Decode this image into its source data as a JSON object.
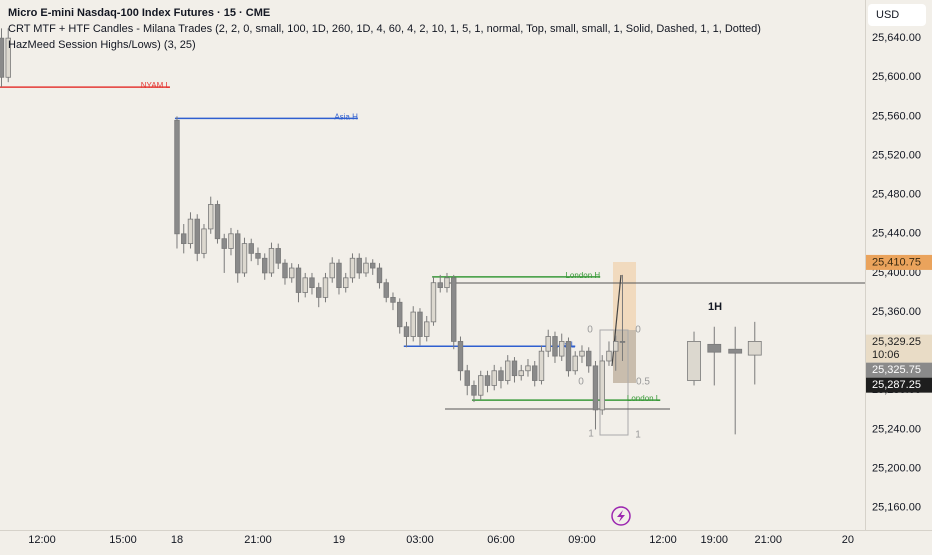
{
  "chart_data": {
    "type": "candlestick",
    "title": "Micro E-mini Nasdaq-100 Index Futures · 15 · CME",
    "indicators": [
      "CRT MTF + HTF Candles - Milana Trades (2, 2, 0, small, 100, 1D, 260, 1D, 4, 60, 4, 2, 10, 1, 5, 1, normal, Top, small, small, 1, Solid, Dashed, 1, 1, Dotted)",
      "HazMeed Session Highs/Lows) (3, 25)"
    ],
    "currency": "USD",
    "up_color": "#dcd8cf",
    "down_color": "#8a8a8a",
    "wick_color": "#7a7a7a",
    "xlim": [
      -6.22,
      121.93
    ],
    "ylim": [
      25127,
      25679
    ],
    "xticks": [
      {
        "value": 0,
        "label": "12:00"
      },
      {
        "value": 12,
        "label": "15:00"
      },
      {
        "value": 20,
        "label": "18"
      },
      {
        "value": 32,
        "label": "21:00"
      },
      {
        "value": 44,
        "label": "19"
      },
      {
        "value": 56,
        "label": "03:00"
      },
      {
        "value": 68,
        "label": "06:00"
      },
      {
        "value": 80,
        "label": "09:00"
      },
      {
        "value": 92,
        "label": "12:00"
      },
      {
        "value": 99.6,
        "label": "19:00"
      },
      {
        "value": 107.6,
        "label": "21:00"
      },
      {
        "value": 119.4,
        "label": "20"
      }
    ],
    "yticks": [
      {
        "value": 25160,
        "label": "25,160.00"
      },
      {
        "value": 25200,
        "label": "25,200.00"
      },
      {
        "value": 25240,
        "label": "25,240.00"
      },
      {
        "value": 25280,
        "label": "25,280.00"
      },
      {
        "value": 25320,
        "label": "25,320.00"
      },
      {
        "value": 25360,
        "label": "25,360.00"
      },
      {
        "value": 25400,
        "label": "25,400.00"
      },
      {
        "value": 25440,
        "label": "25,440.00"
      },
      {
        "value": 25480,
        "label": "25,480.00"
      },
      {
        "value": 25520,
        "label": "25,520.00"
      },
      {
        "value": 25560,
        "label": "25,560.00"
      },
      {
        "value": 25600,
        "label": "25,600.00"
      },
      {
        "value": 25640,
        "label": "25,640.00"
      }
    ],
    "candles": {
      "x": [
        -6,
        -5,
        20,
        21,
        22,
        23,
        24,
        25,
        26,
        27,
        28,
        29,
        30,
        31,
        32,
        33,
        34,
        35,
        36,
        37,
        38,
        39,
        40,
        41,
        42,
        43,
        44,
        45,
        46,
        47,
        48,
        49,
        50,
        51,
        52,
        53,
        54,
        55,
        56,
        57,
        58,
        59,
        60,
        61,
        62,
        63,
        64,
        65,
        66,
        67,
        68,
        69,
        70,
        71,
        72,
        73,
        74,
        75,
        76,
        77,
        78,
        79,
        80,
        81,
        82,
        83,
        84,
        85,
        86
      ],
      "open": [
        25640,
        25600,
        25556,
        25440,
        25430,
        25455,
        25420,
        25445,
        25470,
        25435,
        25425,
        25440,
        25400,
        25430,
        25420,
        25415,
        25400,
        25425,
        25410,
        25395,
        25405,
        25380,
        25395,
        25385,
        25375,
        25395,
        25410,
        25385,
        25395,
        25415,
        25400,
        25410,
        25405,
        25390,
        25375,
        25370,
        25345,
        25335,
        25360,
        25335,
        25350,
        25390,
        25385,
        25395,
        25330,
        25300,
        25285,
        25275,
        25295,
        25285,
        25300,
        25290,
        25310,
        25295,
        25300,
        25305,
        25290,
        25320,
        25335,
        25315,
        25330,
        25300,
        25315,
        25320,
        25305,
        25260,
        25310,
        25320,
        25330
      ],
      "high": [
        25650,
        25650,
        25560,
        25450,
        25462,
        25460,
        25450,
        25478,
        25474,
        25440,
        25446,
        25444,
        25436,
        25435,
        25426,
        25420,
        25431,
        25430,
        25414,
        25410,
        25409,
        25400,
        25400,
        25390,
        25400,
        25416,
        25414,
        25400,
        25420,
        25420,
        25416,
        25414,
        25410,
        25394,
        25380,
        25374,
        25350,
        25366,
        25364,
        25356,
        25396,
        25398,
        25400,
        25398,
        25335,
        25306,
        25290,
        25300,
        25300,
        25306,
        25304,
        25316,
        25314,
        25306,
        25312,
        25310,
        25326,
        25342,
        25340,
        25338,
        25334,
        25320,
        25326,
        25324,
        25310,
        25316,
        25330,
        25336,
        25398
      ],
      "low": [
        25590,
        25595,
        25425,
        25420,
        25425,
        25412,
        25415,
        25440,
        25430,
        25400,
        25418,
        25390,
        25396,
        25412,
        25408,
        25393,
        25396,
        25404,
        25388,
        25390,
        25370,
        25375,
        25378,
        25365,
        25370,
        25390,
        25378,
        25380,
        25390,
        25394,
        25396,
        25398,
        25384,
        25370,
        25362,
        25338,
        25324,
        25330,
        25326,
        25330,
        25346,
        25380,
        25380,
        25322,
        25290,
        25275,
        25268,
        25270,
        25278,
        25280,
        25282,
        25286,
        25288,
        25290,
        25294,
        25284,
        25286,
        25314,
        25308,
        25310,
        25294,
        25296,
        25308,
        25298,
        25240,
        25255,
        25305,
        25300,
        25310
      ],
      "close": [
        25600,
        25640,
        25440,
        25430,
        25455,
        25420,
        25445,
        25470,
        25435,
        25425,
        25440,
        25400,
        25430,
        25420,
        25415,
        25400,
        25425,
        25410,
        25395,
        25405,
        25380,
        25395,
        25385,
        25375,
        25395,
        25410,
        25385,
        25395,
        25415,
        25400,
        25410,
        25405,
        25390,
        25375,
        25370,
        25345,
        25335,
        25360,
        25335,
        25350,
        25390,
        25385,
        25395,
        25330,
        25300,
        25285,
        25275,
        25295,
        25285,
        25300,
        25290,
        25310,
        25295,
        25300,
        25305,
        25290,
        25320,
        25335,
        25315,
        25330,
        25300,
        25315,
        25320,
        25305,
        25260,
        25310,
        25320,
        25330,
        25329.25
      ]
    },
    "htf": {
      "label": "1H",
      "x": [
        96.6,
        99.6,
        102.7,
        105.6
      ],
      "open": [
        25290,
        25327,
        25322,
        25316
      ],
      "high": [
        25340,
        25345,
        25345,
        25350
      ],
      "low": [
        25285,
        25285,
        25235,
        25286
      ],
      "close": [
        25330,
        25319,
        25318,
        25330
      ]
    },
    "levels": [
      {
        "name": "NYAM L",
        "value": 25590,
        "x": [
          -6.22,
          18.96
        ],
        "color": "#e53935"
      },
      {
        "name": "Asia H",
        "value": 25558,
        "x": [
          19.7,
          46.8
        ],
        "color": "#2f5fd0"
      },
      {
        "name": "London H",
        "value": 25396,
        "x": [
          57.8,
          82.7
        ],
        "color": "#3a9a3a"
      },
      {
        "name": "Asia L",
        "value": 25325,
        "x": [
          53.6,
          79
        ],
        "color": "#2f5fd0"
      },
      {
        "name": "London L",
        "value": 25270,
        "x": [
          63.7,
          91.6
        ],
        "color": "#3a9a3a"
      }
    ],
    "annotations": [
      "0",
      "0",
      "0",
      "0.5",
      "1",
      "1"
    ],
    "price_tags": [
      {
        "value": 25410.75,
        "label": "25,410.75",
        "color": "#eaa35c",
        "text_color": "#3a2a10"
      },
      {
        "value": 25329.25,
        "label": "25,329.25",
        "countdown": "10:06",
        "color": "#e9dcc6",
        "text_color": "#222222"
      },
      {
        "value": 25325.75,
        "label": "25,325.75",
        "color": "#8a8a8a",
        "text_color": "#ffffff"
      },
      {
        "value": 25287.25,
        "label": "25,287.25",
        "color": "#1e1e1e",
        "text_color": "#ffffff"
      }
    ]
  }
}
